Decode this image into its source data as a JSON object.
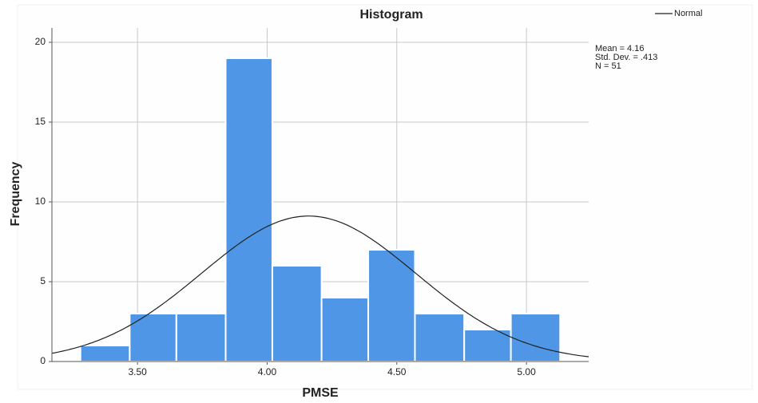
{
  "chart_data": {
    "type": "histogram",
    "title": "Histogram",
    "x_label": "PMSE",
    "y_label": "Frequency",
    "bins": [
      3.28,
      3.47,
      3.65,
      3.84,
      4.02,
      4.21,
      4.39,
      4.57,
      4.76,
      4.94,
      5.13
    ],
    "values": [
      1,
      3,
      3,
      19,
      6,
      4,
      7,
      3,
      2,
      3
    ],
    "color": "#4f97e6",
    "xlim": [
      3.17,
      5.24
    ],
    "ylim": [
      0,
      20.9
    ],
    "xticks": [
      {
        "value": 3.5,
        "label": "3.50"
      },
      {
        "value": 4.0,
        "label": "4.00"
      },
      {
        "value": 4.5,
        "label": "4.50"
      },
      {
        "value": 5.0,
        "label": "5.00"
      }
    ],
    "yticks": [
      0,
      5,
      10,
      15,
      20
    ],
    "grid": true,
    "legend": {
      "name": "Normal",
      "color": "#222222",
      "position": "top-right"
    },
    "stats": [
      {
        "label": "Mean = 4.16",
        "value": 4.16
      },
      {
        "label": "Std. Dev. = .413",
        "value": 0.413
      },
      {
        "label": "N = 51",
        "value": 51
      }
    ]
  }
}
